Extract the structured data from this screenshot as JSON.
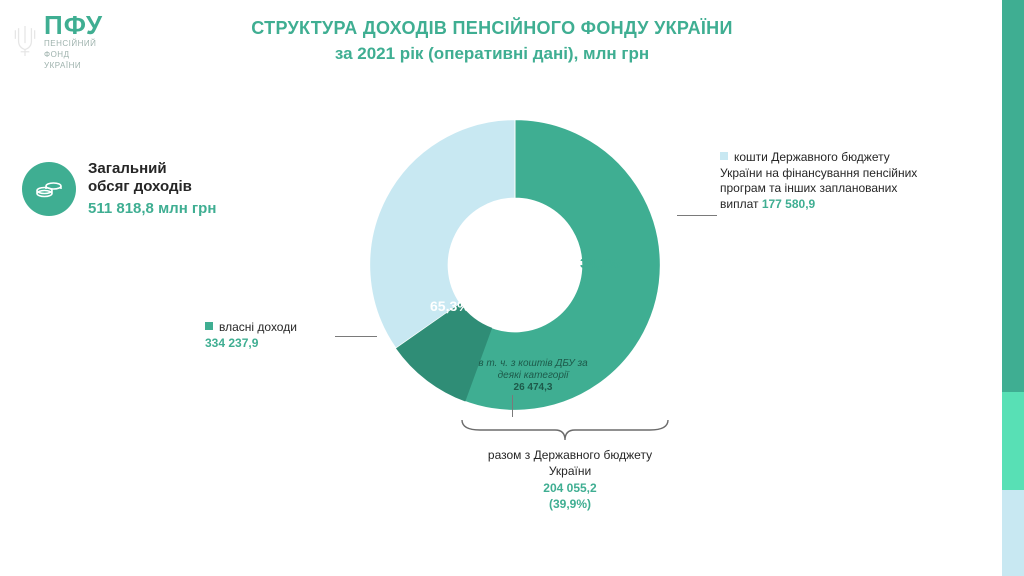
{
  "logo": {
    "acronym": "ПФУ",
    "sub1": "ПЕНСІЙНИЙ",
    "sub2": "ФОНД",
    "sub3": "УКРАЇНИ"
  },
  "header": {
    "title": "СТРУКТУРА  ДОХОДІВ ПЕНСІЙНОГО ФОНДУ УКРАЇНИ",
    "subtitle": "за 2021 рік (оперативні дані), млн грн"
  },
  "total": {
    "label1": "Загальний",
    "label2": "обсяг доходів",
    "value": "511 818,8 млн грн"
  },
  "chart": {
    "type": "donut",
    "slices": [
      {
        "key": "own",
        "pct": 65.3,
        "color": "#3fae92",
        "label": "власні доходи",
        "value": "334 237,9",
        "pct_label": "65,3%"
      },
      {
        "key": "state",
        "pct": 34.7,
        "color": "#c8e8f2",
        "label": "кошти Державного бюджету України на фінансування пенсійних програм та інших запланованих виплат",
        "value": "177 580,9",
        "pct_label": "34,7%"
      }
    ],
    "inner_radius_ratio": 0.46,
    "outer_radius_ratio": 1.0,
    "start_angle_deg": 0,
    "sub_segment": {
      "color": "#2f8d76",
      "label": "в т. ч. з коштів ДБУ за деякі категорії",
      "value": "26 474,3",
      "start_deg": 200,
      "end_deg": 235
    },
    "background_color": "#ffffff"
  },
  "bottom": {
    "label": "разом з Державного бюджету України",
    "value": "204 055,2",
    "pct": "(39,9%)"
  },
  "stripes": [
    {
      "color": "#3fae92",
      "height_pct": 68
    },
    {
      "color": "#58e0b5",
      "height_pct": 17
    },
    {
      "color": "#c8e8f2",
      "height_pct": 15
    }
  ],
  "colors": {
    "accent": "#3fae92",
    "text": "#262626",
    "muted": "#7a7a7a"
  }
}
